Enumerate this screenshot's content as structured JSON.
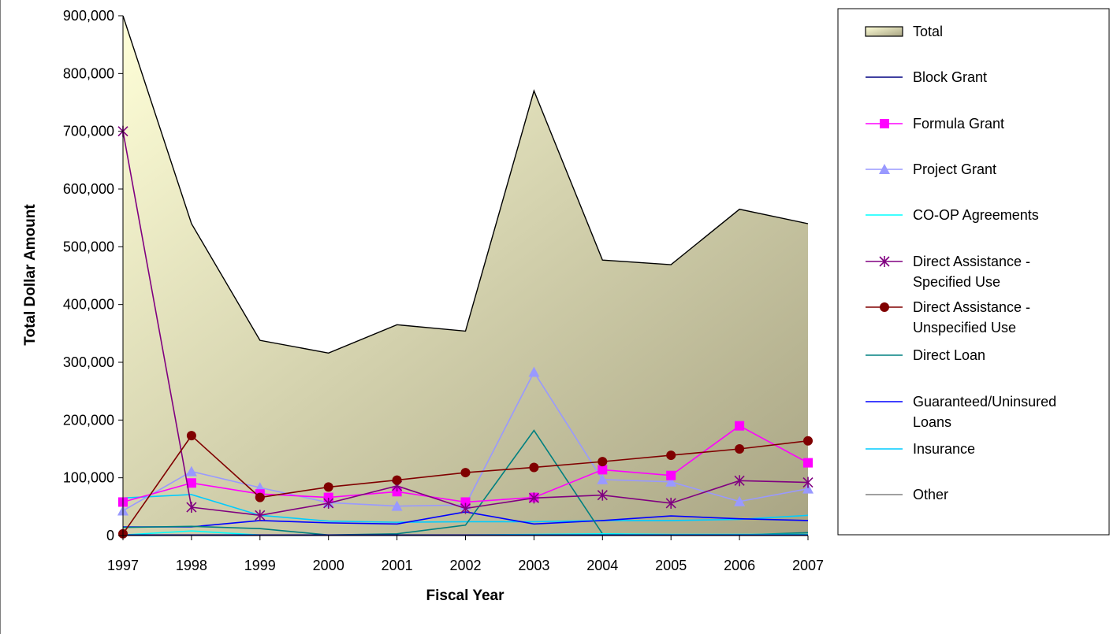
{
  "chart_data": {
    "type": "line",
    "xlabel": "Fiscal Year",
    "ylabel": "Total Dollar Amount",
    "x": [
      "1997",
      "1998",
      "1999",
      "2000",
      "2001",
      "2002",
      "2003",
      "2004",
      "2005",
      "2006",
      "2007"
    ],
    "ylim": [
      0,
      900000
    ],
    "yticks": [
      0,
      100000,
      200000,
      300000,
      400000,
      500000,
      600000,
      700000,
      800000,
      900000
    ],
    "ytick_labels": [
      "0",
      "100,000",
      "200,000",
      "300,000",
      "400,000",
      "500,000",
      "600,000",
      "700,000",
      "800,000",
      "900,000"
    ],
    "grid": false,
    "legend_position": "right",
    "series": [
      {
        "name": "Total",
        "kind": "area",
        "color": "#000000",
        "fill_start": "#ffffd8",
        "fill_end": "#a8a483",
        "values": [
          900000,
          540000,
          338000,
          316000,
          365000,
          354000,
          770000,
          477000,
          469000,
          565000,
          540000
        ]
      },
      {
        "name": "Block Grant",
        "kind": "line",
        "color": "#000080",
        "marker": "none",
        "values": [
          1000,
          1000,
          1000,
          1000,
          1000,
          1000,
          1000,
          1000,
          1000,
          1000,
          1000
        ]
      },
      {
        "name": "Formula Grant",
        "kind": "line",
        "color": "#ff00ff",
        "marker": "square",
        "values": [
          58000,
          91000,
          72000,
          66000,
          76000,
          58000,
          66000,
          114000,
          104000,
          190000,
          126000
        ]
      },
      {
        "name": "Project Grant",
        "kind": "line",
        "color": "#9999ff",
        "marker": "triangle",
        "values": [
          43000,
          111000,
          83000,
          57000,
          51000,
          53000,
          283000,
          97000,
          93000,
          59000,
          81000
        ]
      },
      {
        "name": "CO-OP Agreements",
        "kind": "line",
        "color": "#00ffff",
        "marker": "none",
        "values": [
          1000,
          8000,
          1000,
          1000,
          1000,
          1000,
          2000,
          3000,
          2000,
          2000,
          2000
        ]
      },
      {
        "name": "Direct Assistance - Specified Use",
        "kind": "line",
        "color": "#800080",
        "marker": "star",
        "values": [
          700000,
          49000,
          35000,
          56000,
          86000,
          47000,
          65000,
          70000,
          56000,
          95000,
          92000
        ]
      },
      {
        "name": "Direct Assistance - Unspecified Use",
        "kind": "line",
        "color": "#800000",
        "marker": "circle",
        "values": [
          3000,
          173000,
          66000,
          84000,
          96000,
          109000,
          118000,
          128000,
          139000,
          150000,
          164000
        ]
      },
      {
        "name": "Direct Loan",
        "kind": "line",
        "color": "#008080",
        "marker": "none",
        "values": [
          14000,
          16000,
          12000,
          1000,
          3000,
          18000,
          182000,
          3000,
          1000,
          1000,
          5000
        ]
      },
      {
        "name": "Guaranteed/Uninsured Loans",
        "kind": "line",
        "color": "#0000ff",
        "marker": "none",
        "values": [
          15000,
          15000,
          26000,
          22000,
          20000,
          41000,
          20000,
          26000,
          34000,
          29000,
          26000
        ]
      },
      {
        "name": "Insurance",
        "kind": "line",
        "color": "#00ccff",
        "marker": "none",
        "values": [
          65000,
          71000,
          35000,
          25000,
          23000,
          24000,
          24000,
          26000,
          26000,
          28000,
          35000
        ]
      },
      {
        "name": "Other",
        "kind": "line",
        "color": "#808080",
        "marker": "none",
        "values": [
          1000,
          1000,
          1000,
          1000,
          1000,
          1000,
          1000,
          1000,
          1000,
          1000,
          1000
        ]
      }
    ],
    "legend": [
      {
        "lines": [
          "Total"
        ],
        "series": 0
      },
      {
        "lines": [
          "Block Grant"
        ],
        "series": 1
      },
      {
        "lines": [
          "Formula Grant"
        ],
        "series": 2
      },
      {
        "lines": [
          "Project Grant"
        ],
        "series": 3
      },
      {
        "lines": [
          "CO-OP Agreements"
        ],
        "series": 4
      },
      {
        "lines": [
          "Direct Assistance -",
          "Specified Use"
        ],
        "series": 5
      },
      {
        "lines": [
          "Direct Assistance -",
          "Unspecified Use"
        ],
        "series": 6
      },
      {
        "lines": [
          "Direct Loan"
        ],
        "series": 7
      },
      {
        "lines": [
          "Guaranteed/Uninsured",
          "Loans"
        ],
        "series": 8
      },
      {
        "lines": [
          "Insurance"
        ],
        "series": 9
      },
      {
        "lines": [
          "Other"
        ],
        "series": 10
      }
    ]
  }
}
